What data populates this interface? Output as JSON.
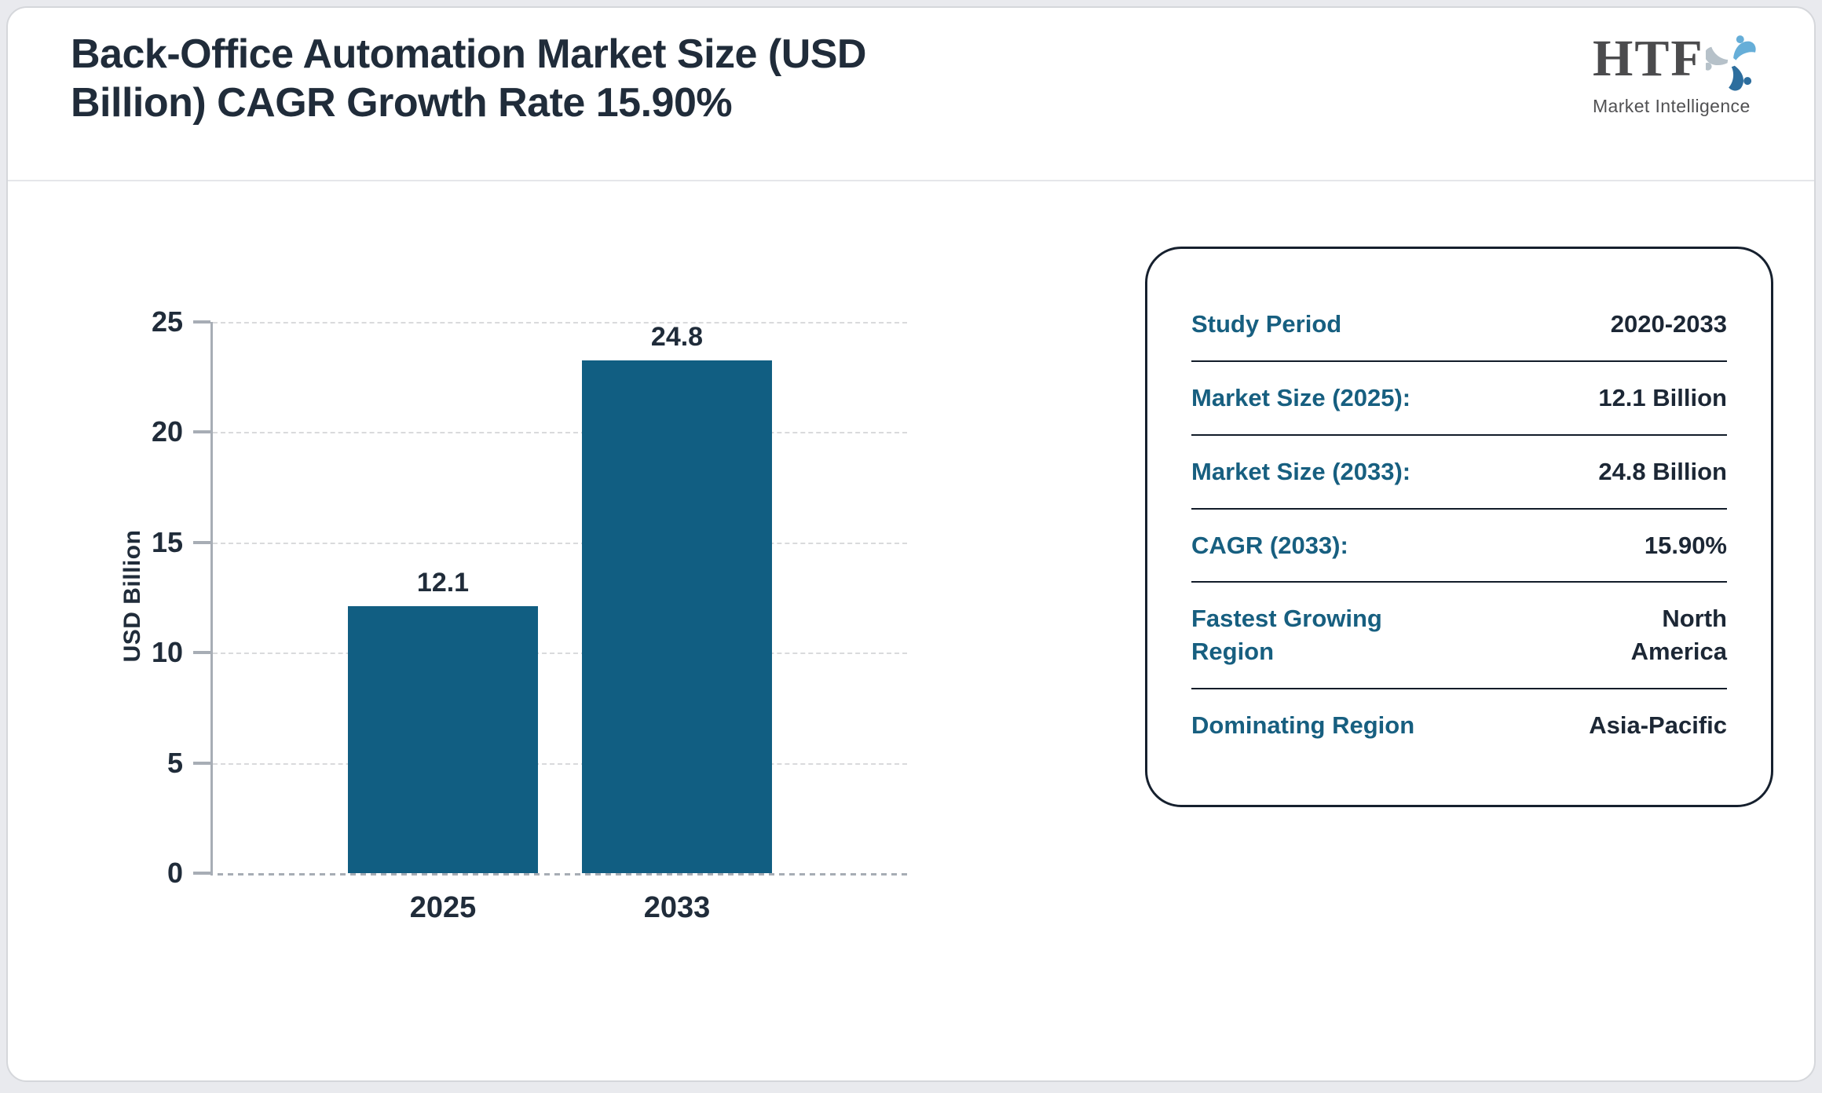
{
  "header": {
    "title": "Back-Office Automation Market Size (USD Billion) CAGR Growth Rate 15.90%",
    "logo": {
      "text": "HTF",
      "subtitle": "Market Intelligence",
      "swirl_colors": [
        "#66aed8",
        "#2d6e9e",
        "#b6c1c9"
      ]
    }
  },
  "chart_data": {
    "type": "bar",
    "categories": [
      "2025",
      "2033"
    ],
    "values": [
      12.1,
      24.8
    ],
    "bar_labels": [
      "12.1",
      "24.8"
    ],
    "title": "Back-Office Automation Market Size (USD Billion) CAGR Growth Rate 15.90%",
    "xlabel": "",
    "ylabel": "USD Billion",
    "ylim": [
      0,
      25
    ],
    "yticks": [
      25,
      20,
      15,
      10,
      5,
      0
    ],
    "grid": true,
    "legend_position": "none",
    "bar_color": "#115e82"
  },
  "summary_panel": {
    "rows": [
      {
        "label": "Study Period",
        "value": "2020-2033"
      },
      {
        "label": "Market Size (2025):",
        "value": "12.1 Billion"
      },
      {
        "label": "Market Size (2033):",
        "value": "24.8 Billion"
      },
      {
        "label": "CAGR (2033):",
        "value": "15.90%"
      },
      {
        "label": "Fastest Growing Region",
        "value": "North America"
      },
      {
        "label": "Dominating Region",
        "value": "Asia-Pacific"
      }
    ]
  },
  "colors": {
    "bar": "#115e82",
    "accent_teal": "#175f80",
    "title_navy": "#202c3a",
    "axis_gray": "#a7adb5",
    "grid_gray": "#d9dadc",
    "panel_border": "#16202e",
    "page_background": "#e9eaee"
  }
}
